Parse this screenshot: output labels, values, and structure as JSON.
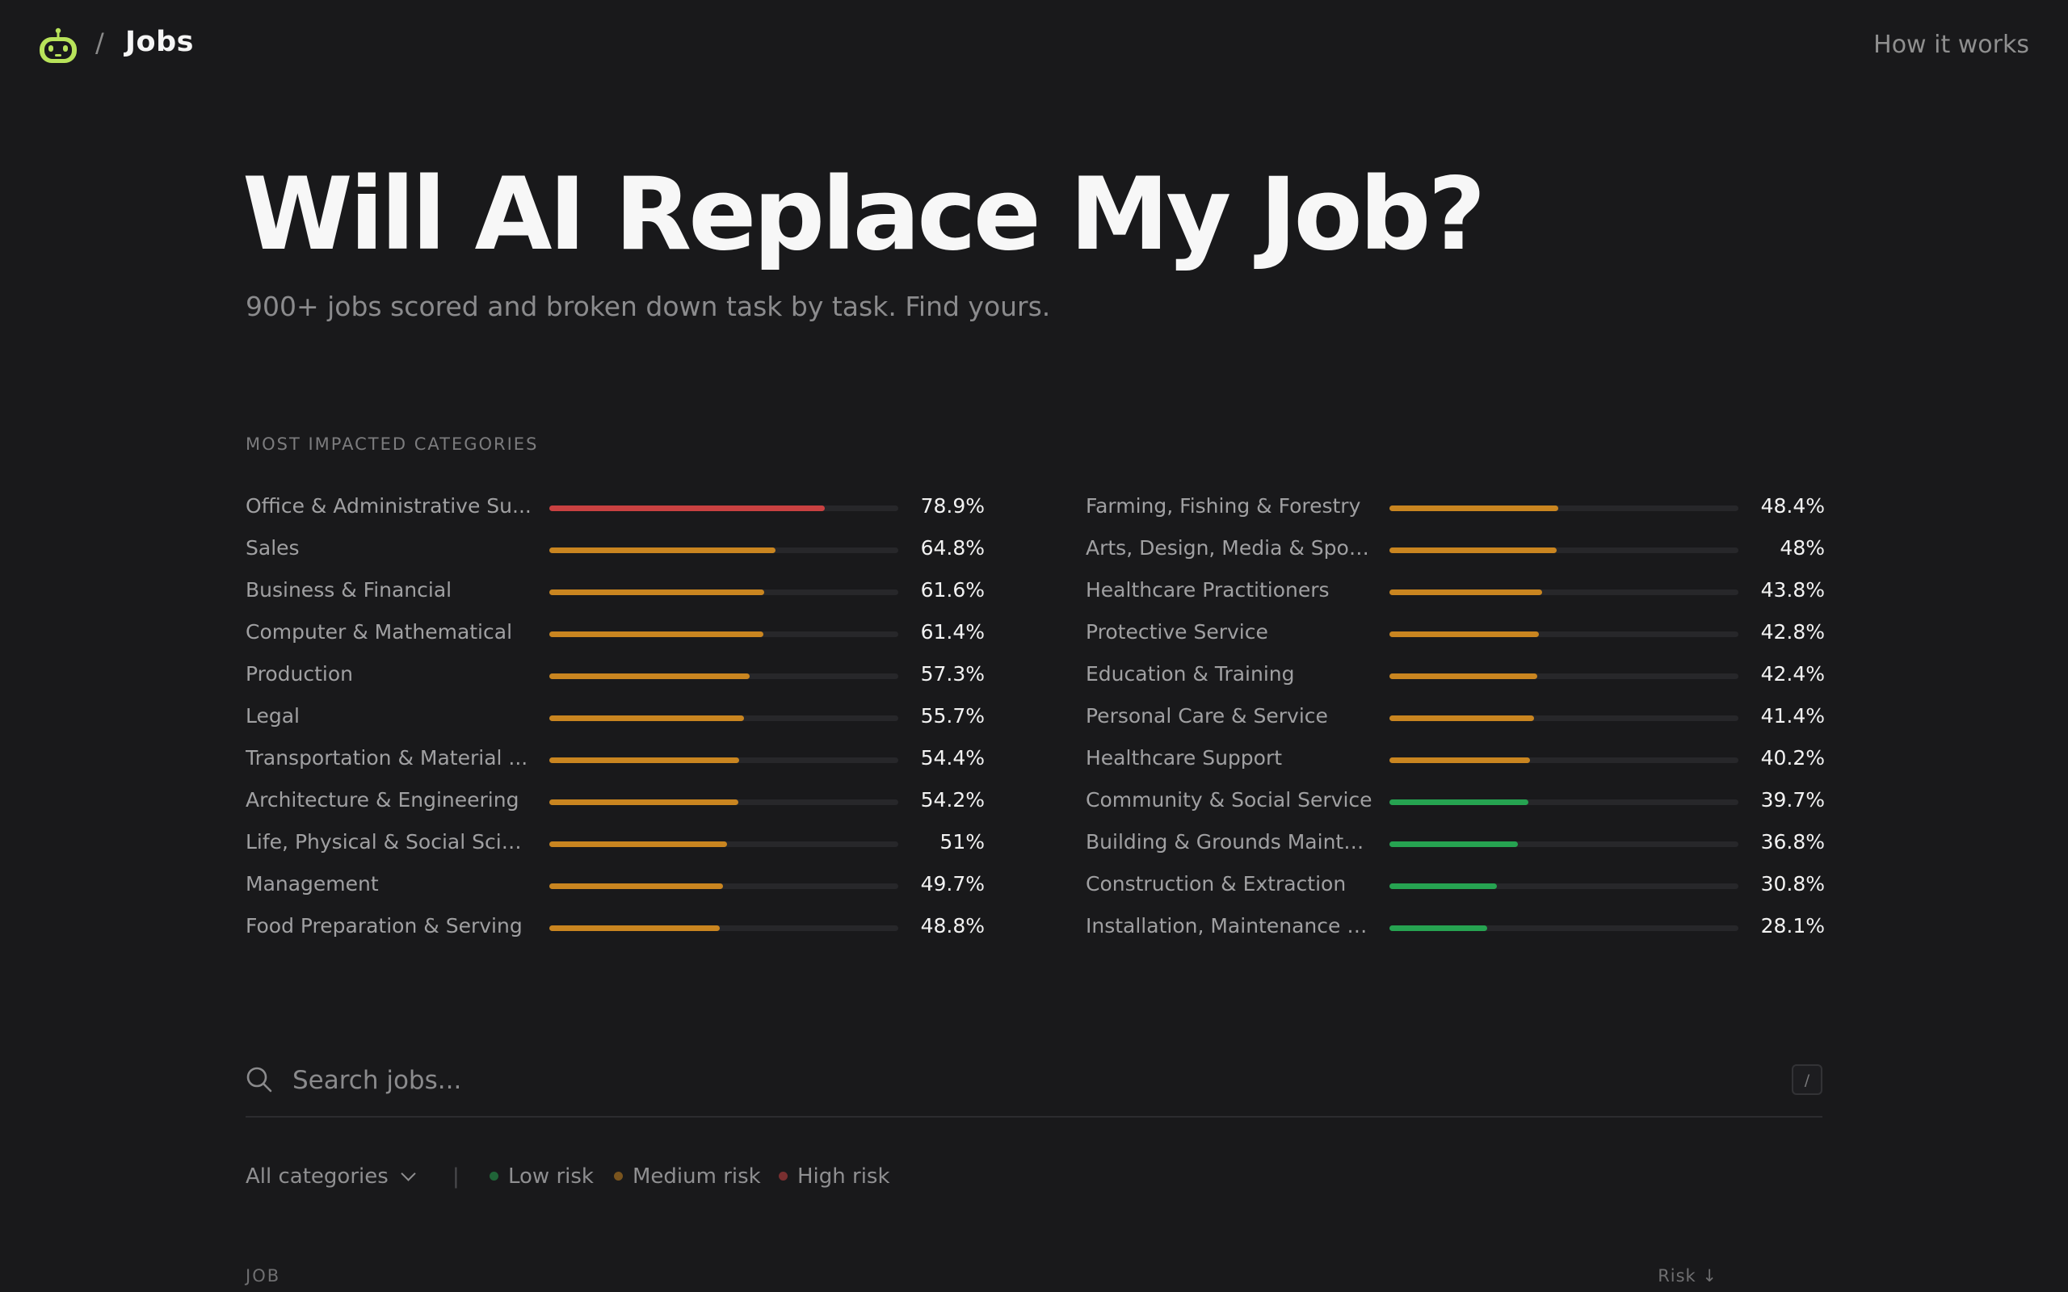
{
  "header": {
    "logo_icon": "robot-icon",
    "separator": "/",
    "title": "Jobs",
    "how_link": "How it works"
  },
  "hero": {
    "title": "Will AI Replace My Job?",
    "subtitle": "900+ jobs scored and broken down task by task. Find yours."
  },
  "categories_label": "MOST IMPACTED CATEGORIES",
  "colors": {
    "high": "#c94141",
    "medium": "#c98520",
    "low": "#26a351"
  },
  "categories_left": [
    {
      "name": "Office & Administrative Su...",
      "pct": "78.9%",
      "value": 78.9,
      "level": "high"
    },
    {
      "name": "Sales",
      "pct": "64.8%",
      "value": 64.8,
      "level": "medium"
    },
    {
      "name": "Business & Financial",
      "pct": "61.6%",
      "value": 61.6,
      "level": "medium"
    },
    {
      "name": "Computer & Mathematical",
      "pct": "61.4%",
      "value": 61.4,
      "level": "medium"
    },
    {
      "name": "Production",
      "pct": "57.3%",
      "value": 57.3,
      "level": "medium"
    },
    {
      "name": "Legal",
      "pct": "55.7%",
      "value": 55.7,
      "level": "medium"
    },
    {
      "name": "Transportation & Material ...",
      "pct": "54.4%",
      "value": 54.4,
      "level": "medium"
    },
    {
      "name": "Architecture & Engineering",
      "pct": "54.2%",
      "value": 54.2,
      "level": "medium"
    },
    {
      "name": "Life, Physical & Social Scien...",
      "pct": "51%",
      "value": 51,
      "level": "medium"
    },
    {
      "name": "Management",
      "pct": "49.7%",
      "value": 49.7,
      "level": "medium"
    },
    {
      "name": "Food Preparation & Serving",
      "pct": "48.8%",
      "value": 48.8,
      "level": "medium"
    }
  ],
  "categories_right": [
    {
      "name": "Farming, Fishing & Forestry",
      "pct": "48.4%",
      "value": 48.4,
      "level": "medium"
    },
    {
      "name": "Arts, Design, Media & Sports",
      "pct": "48%",
      "value": 48,
      "level": "medium"
    },
    {
      "name": "Healthcare Practitioners",
      "pct": "43.8%",
      "value": 43.8,
      "level": "medium"
    },
    {
      "name": "Protective Service",
      "pct": "42.8%",
      "value": 42.8,
      "level": "medium"
    },
    {
      "name": "Education & Training",
      "pct": "42.4%",
      "value": 42.4,
      "level": "medium"
    },
    {
      "name": "Personal Care & Service",
      "pct": "41.4%",
      "value": 41.4,
      "level": "medium"
    },
    {
      "name": "Healthcare Support",
      "pct": "40.2%",
      "value": 40.2,
      "level": "medium"
    },
    {
      "name": "Community & Social Service",
      "pct": "39.7%",
      "value": 39.7,
      "level": "low"
    },
    {
      "name": "Building & Grounds Mainte...",
      "pct": "36.8%",
      "value": 36.8,
      "level": "low"
    },
    {
      "name": "Construction & Extraction",
      "pct": "30.8%",
      "value": 30.8,
      "level": "low"
    },
    {
      "name": "Installation, Maintenance &...",
      "pct": "28.1%",
      "value": 28.1,
      "level": "low"
    }
  ],
  "search": {
    "icon": "search-icon",
    "placeholder": "Search jobs...",
    "value": "",
    "shortcut": "/"
  },
  "filters": {
    "category_label": "All categories",
    "divider": "|",
    "legend": [
      {
        "label": "Low risk",
        "level": "low"
      },
      {
        "label": "Medium risk",
        "level": "medium"
      },
      {
        "label": "High risk",
        "level": "high"
      }
    ]
  },
  "table": {
    "col_job": "JOB",
    "col_risk": "Risk ↓"
  }
}
